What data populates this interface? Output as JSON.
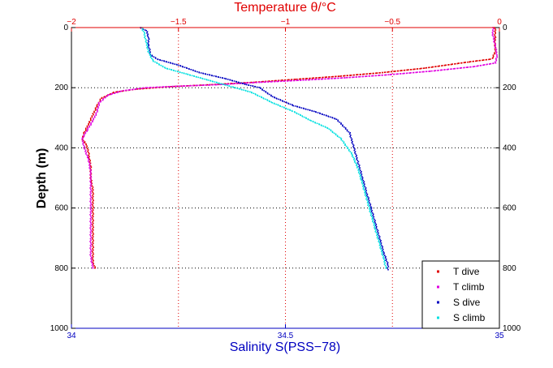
{
  "chart_data": {
    "type": "scatter",
    "title": "",
    "xlabel_top": "Temperature θ/°C",
    "xlabel_bottom": "Salinity S(PSS−78)",
    "ylabel": "Depth (m)",
    "temperature_ticks": [
      {
        "value": -2,
        "label": "−2"
      },
      {
        "value": -1.5,
        "label": "−1.5"
      },
      {
        "value": -1,
        "label": "−1"
      },
      {
        "value": -0.5,
        "label": "−0.5"
      },
      {
        "value": 0,
        "label": "0"
      }
    ],
    "salinity_ticks": [
      {
        "value": 34,
        "label": "34"
      },
      {
        "value": 34.5,
        "label": "34.5"
      },
      {
        "value": 35,
        "label": "35"
      }
    ],
    "depth_ticks": [
      {
        "value": 0,
        "label": "0"
      },
      {
        "value": 200,
        "label": "200"
      },
      {
        "value": 400,
        "label": "400"
      },
      {
        "value": 600,
        "label": "600"
      },
      {
        "value": 800,
        "label": "800"
      },
      {
        "value": 1000,
        "label": "1000"
      }
    ],
    "temperature_range": [
      -2,
      0
    ],
    "salinity_range": [
      34,
      35
    ],
    "depth_range": [
      0,
      1000
    ],
    "depth_axis_reversed": true,
    "grid": true,
    "legend_position": "bottom-right",
    "colors": {
      "temperature_axis": "#e00000",
      "salinity_axis": "#0000c0",
      "grid_temperature": "#e00000",
      "grid_depth": "#000000"
    },
    "series": [
      {
        "name": "T dive",
        "axis": "temperature",
        "color": "#e00000",
        "points": [
          [
            -0.02,
            0
          ],
          [
            -0.02,
            20
          ],
          [
            -0.02,
            50
          ],
          [
            -0.02,
            80
          ],
          [
            -0.03,
            100
          ],
          [
            -0.04,
            105
          ],
          [
            -0.15,
            115
          ],
          [
            -0.35,
            135
          ],
          [
            -0.55,
            150
          ],
          [
            -0.75,
            162
          ],
          [
            -0.95,
            172
          ],
          [
            -1.15,
            182
          ],
          [
            -1.35,
            190
          ],
          [
            -1.55,
            197
          ],
          [
            -1.7,
            205
          ],
          [
            -1.8,
            215
          ],
          [
            -1.86,
            235
          ],
          [
            -1.88,
            260
          ],
          [
            -1.9,
            290
          ],
          [
            -1.92,
            320
          ],
          [
            -1.94,
            350
          ],
          [
            -1.95,
            370
          ],
          [
            -1.93,
            390
          ],
          [
            -1.92,
            420
          ],
          [
            -1.91,
            460
          ],
          [
            -1.91,
            500
          ],
          [
            -1.9,
            540
          ],
          [
            -1.9,
            580
          ],
          [
            -1.9,
            620
          ],
          [
            -1.9,
            660
          ],
          [
            -1.9,
            700
          ],
          [
            -1.9,
            740
          ],
          [
            -1.9,
            780
          ],
          [
            -1.89,
            800
          ]
        ]
      },
      {
        "name": "T climb",
        "axis": "temperature",
        "color": "#e000e0",
        "points": [
          [
            -0.03,
            0
          ],
          [
            -0.03,
            25
          ],
          [
            -0.02,
            60
          ],
          [
            -0.01,
            95
          ],
          [
            -0.02,
            118
          ],
          [
            -0.12,
            130
          ],
          [
            -0.32,
            145
          ],
          [
            -0.52,
            157
          ],
          [
            -0.72,
            167
          ],
          [
            -0.92,
            175
          ],
          [
            -1.12,
            182
          ],
          [
            -1.32,
            190
          ],
          [
            -1.5,
            195
          ],
          [
            -1.65,
            200
          ],
          [
            -1.76,
            210
          ],
          [
            -1.83,
            225
          ],
          [
            -1.87,
            250
          ],
          [
            -1.88,
            280
          ],
          [
            -1.9,
            310
          ],
          [
            -1.93,
            345
          ],
          [
            -1.95,
            370
          ],
          [
            -1.94,
            400
          ],
          [
            -1.92,
            440
          ],
          [
            -1.91,
            480
          ],
          [
            -1.91,
            520
          ],
          [
            -1.91,
            560
          ],
          [
            -1.91,
            600
          ],
          [
            -1.91,
            640
          ],
          [
            -1.91,
            680
          ],
          [
            -1.91,
            720
          ],
          [
            -1.91,
            760
          ],
          [
            -1.9,
            800
          ]
        ]
      },
      {
        "name": "S dive",
        "axis": "salinity",
        "color": "#0000c0",
        "points": [
          [
            34.16,
            0
          ],
          [
            34.175,
            10
          ],
          [
            34.18,
            30
          ],
          [
            34.18,
            60
          ],
          [
            34.185,
            90
          ],
          [
            34.2,
            105
          ],
          [
            34.25,
            125
          ],
          [
            34.3,
            150
          ],
          [
            34.36,
            170
          ],
          [
            34.41,
            190
          ],
          [
            34.44,
            200
          ],
          [
            34.47,
            230
          ],
          [
            34.52,
            260
          ],
          [
            34.57,
            280
          ],
          [
            34.62,
            305
          ],
          [
            34.65,
            350
          ],
          [
            34.66,
            400
          ],
          [
            34.67,
            450
          ],
          [
            34.68,
            500
          ],
          [
            34.69,
            550
          ],
          [
            34.7,
            600
          ],
          [
            34.71,
            650
          ],
          [
            34.72,
            700
          ],
          [
            34.73,
            750
          ],
          [
            34.74,
            790
          ],
          [
            34.74,
            805
          ]
        ]
      },
      {
        "name": "S climb",
        "axis": "salinity",
        "color": "#00e0e0",
        "points": [
          [
            34.165,
            0
          ],
          [
            34.17,
            20
          ],
          [
            34.175,
            50
          ],
          [
            34.18,
            80
          ],
          [
            34.19,
            110
          ],
          [
            34.22,
            135
          ],
          [
            34.27,
            155
          ],
          [
            34.32,
            175
          ],
          [
            34.37,
            195
          ],
          [
            34.42,
            215
          ],
          [
            34.47,
            250
          ],
          [
            34.52,
            280
          ],
          [
            34.56,
            310
          ],
          [
            34.6,
            335
          ],
          [
            34.63,
            370
          ],
          [
            34.655,
            420
          ],
          [
            34.67,
            470
          ],
          [
            34.68,
            520
          ],
          [
            34.69,
            570
          ],
          [
            34.7,
            620
          ],
          [
            34.71,
            670
          ],
          [
            34.72,
            720
          ],
          [
            34.73,
            770
          ],
          [
            34.735,
            800
          ]
        ]
      }
    ]
  }
}
